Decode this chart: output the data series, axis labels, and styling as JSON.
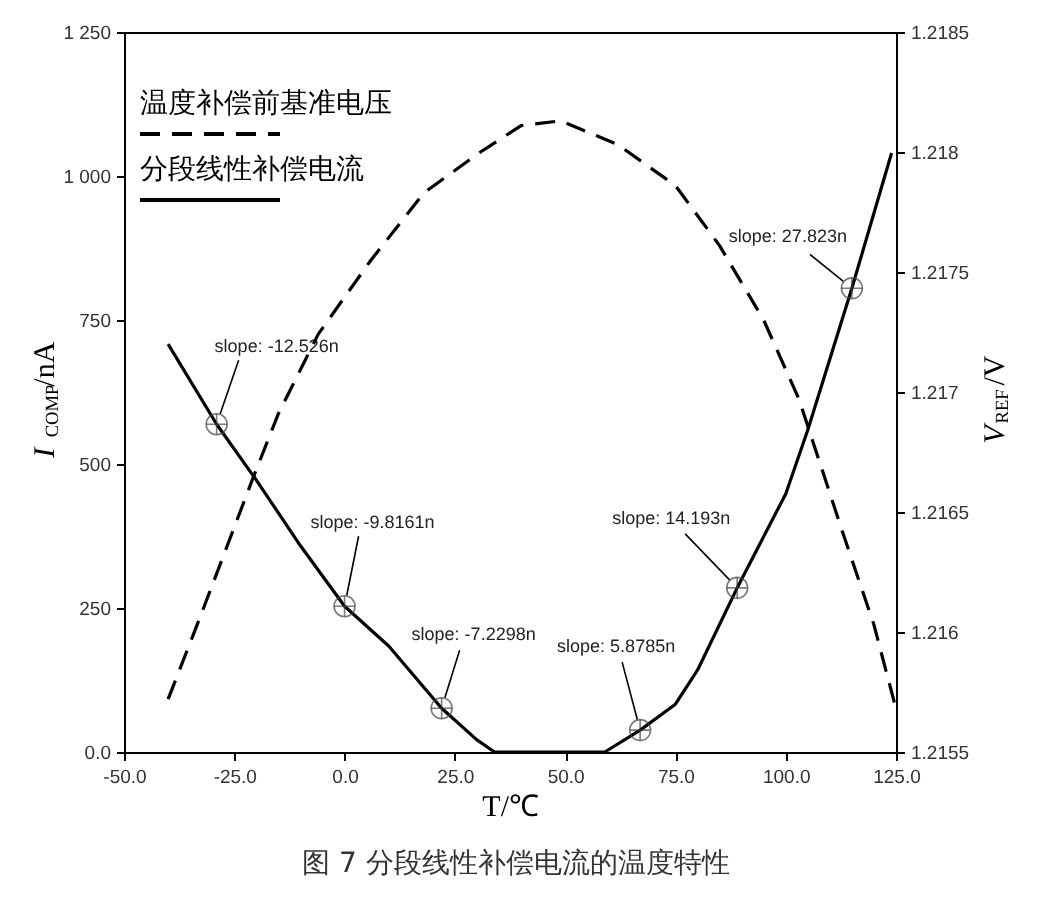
{
  "chart_data": {
    "type": "line",
    "xlabel": "T/℃",
    "ylabel": "I$_{COMP}$/nA",
    "y2label": "V$_{REF}$/V",
    "xlim": [
      -50,
      125
    ],
    "xticks": [
      {
        "value": -50,
        "label": "-50.0"
      },
      {
        "value": -25,
        "label": "-25.0"
      },
      {
        "value": 0,
        "label": "0.0"
      },
      {
        "value": 25,
        "label": "25.0"
      },
      {
        "value": 50,
        "label": "50.0"
      },
      {
        "value": 75,
        "label": "75.0"
      },
      {
        "value": 100,
        "label": "100.0"
      },
      {
        "value": 125,
        "label": "125.0"
      }
    ],
    "ylim": [
      0,
      1250
    ],
    "yticks": [
      {
        "value": 0,
        "label": "0.0"
      },
      250,
      500,
      750,
      {
        "value": 1000,
        "label": "1 000"
      },
      {
        "value": 1250,
        "label": "1 250"
      }
    ],
    "y2lim": [
      1.2155,
      1.2185
    ],
    "y2ticks": [
      1.2155,
      1.216,
      1.2165,
      1.217,
      1.2175,
      1.218,
      1.2185
    ],
    "legend": "top left",
    "series": [
      {
        "name": "温度补偿前基准电压",
        "color": "#000000",
        "line_style": "dashed",
        "axis": "y2",
        "x": [
          -40,
          -33,
          -21,
          -15,
          -6,
          6,
          18,
          30,
          40,
          49,
          62,
          75,
          85,
          95,
          103,
          113,
          120,
          125
        ],
        "values": [
          1.21572,
          1.21605,
          1.21663,
          1.21691,
          1.21724,
          1.21755,
          1.21783,
          1.21799,
          1.21811,
          1.21813,
          1.21803,
          1.21786,
          1.21761,
          1.2173,
          1.21697,
          1.21641,
          1.21603,
          1.21568
        ]
      },
      {
        "name": "分段线性补偿电流",
        "color": "#000000",
        "line_style": "solid",
        "x": [
          -40,
          -29,
          -20,
          -10,
          0,
          10,
          22,
          30,
          34,
          45,
          59,
          67,
          75,
          80,
          89,
          100,
          105,
          115,
          124
        ],
        "values": [
          708,
          569,
          472,
          358,
          253,
          184,
          76,
          21,
          0,
          0,
          0,
          38,
          83,
          142,
          285,
          448,
          559,
          805,
          1040
        ]
      }
    ],
    "annotations": [
      {
        "text": "slope: -12.526n",
        "x": -29,
        "y": 569
      },
      {
        "text": "slope: -9.8161n",
        "x": 0,
        "y": 253
      },
      {
        "text": "slope: -7.2298n",
        "x": 22,
        "y": 76
      },
      {
        "text": "slope: 5.8785n",
        "x": 67,
        "y": 38
      },
      {
        "text": "slope: 14.193n",
        "x": 89,
        "y": 285
      },
      {
        "text": "slope: 27.823n",
        "x": 115,
        "y": 805
      },
      "图 7 分段线性补偿电流的温度特性"
    ]
  }
}
